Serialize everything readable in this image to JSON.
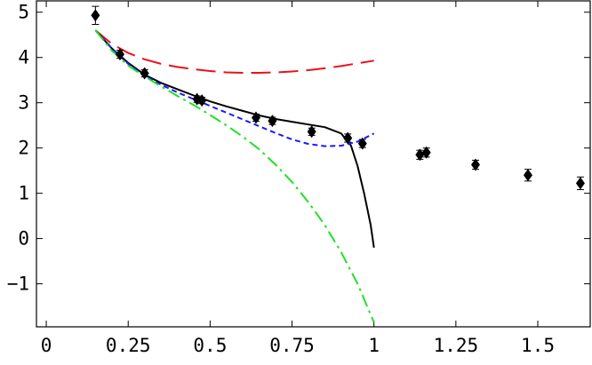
{
  "chart_data": {
    "type": "line",
    "title": "",
    "xlabel": "",
    "ylabel": "",
    "xlim": [
      -0.03,
      1.66
    ],
    "ylim": [
      -1.95,
      5.25
    ],
    "x_ticks": [
      0,
      0.25,
      0.5,
      0.75,
      1,
      1.25,
      1.5
    ],
    "x_tick_labels": [
      "0",
      "0.25",
      "0.5",
      "0.75",
      "1",
      "1.25",
      "1.5"
    ],
    "y_ticks": [
      -1,
      0,
      1,
      2,
      3,
      4,
      5
    ],
    "y_tick_labels": [
      "−1",
      "0",
      "1",
      "2",
      "3",
      "4",
      "5"
    ],
    "grid": false,
    "legend": "none",
    "series": [
      {
        "style": "long-dash",
        "color": "#e8121a",
        "x": [
          0.15,
          0.2,
          0.25,
          0.3,
          0.35,
          0.4,
          0.45,
          0.5,
          0.55,
          0.6,
          0.65,
          0.7,
          0.75,
          0.8,
          0.85,
          0.9,
          0.95,
          1.0
        ],
        "y": [
          4.6,
          4.3,
          4.1,
          3.96,
          3.86,
          3.79,
          3.74,
          3.7,
          3.67,
          3.66,
          3.66,
          3.67,
          3.69,
          3.72,
          3.76,
          3.81,
          3.87,
          3.93
        ]
      },
      {
        "style": "solid",
        "color": "#000000",
        "x": [
          0.15,
          0.2,
          0.25,
          0.3,
          0.35,
          0.4,
          0.45,
          0.5,
          0.55,
          0.6,
          0.65,
          0.7,
          0.75,
          0.8,
          0.85,
          0.9,
          0.93,
          0.95,
          0.97,
          0.99,
          1.0
        ],
        "y": [
          4.6,
          4.2,
          3.88,
          3.62,
          3.44,
          3.3,
          3.16,
          3.03,
          2.92,
          2.82,
          2.72,
          2.64,
          2.58,
          2.52,
          2.46,
          2.32,
          2.05,
          1.6,
          1.0,
          0.3,
          -0.2
        ]
      },
      {
        "style": "short-dash",
        "color": "#1a1aff",
        "x": [
          0.15,
          0.2,
          0.25,
          0.3,
          0.35,
          0.4,
          0.45,
          0.5,
          0.55,
          0.6,
          0.65,
          0.7,
          0.75,
          0.8,
          0.85,
          0.9,
          0.95,
          1.0
        ],
        "y": [
          4.6,
          4.2,
          3.86,
          3.6,
          3.4,
          3.23,
          3.08,
          2.93,
          2.78,
          2.63,
          2.48,
          2.33,
          2.19,
          2.09,
          2.04,
          2.05,
          2.14,
          2.32
        ]
      },
      {
        "style": "dash-dot",
        "color": "#22e022",
        "x": [
          0.15,
          0.2,
          0.25,
          0.3,
          0.35,
          0.4,
          0.45,
          0.5,
          0.55,
          0.6,
          0.65,
          0.7,
          0.75,
          0.8,
          0.85,
          0.9,
          0.95,
          1.0
        ],
        "y": [
          4.6,
          4.15,
          3.82,
          3.58,
          3.36,
          3.15,
          2.95,
          2.73,
          2.5,
          2.25,
          1.97,
          1.63,
          1.25,
          0.8,
          0.3,
          -0.3,
          -1.0,
          -1.85
        ]
      }
    ],
    "points": {
      "marker": "diamond",
      "color": "#000000",
      "x": [
        0.15,
        0.225,
        0.3,
        0.46,
        0.475,
        0.64,
        0.69,
        0.81,
        0.92,
        0.965,
        1.14,
        1.16,
        1.31,
        1.47,
        1.63
      ],
      "y": [
        4.93,
        4.07,
        3.65,
        3.08,
        3.05,
        2.67,
        2.6,
        2.36,
        2.22,
        2.1,
        1.85,
        1.9,
        1.63,
        1.4,
        1.22
      ],
      "err": [
        0.2,
        0.09,
        0.08,
        0.07,
        0.07,
        0.08,
        0.08,
        0.08,
        0.09,
        0.09,
        0.1,
        0.1,
        0.1,
        0.13,
        0.14
      ]
    }
  }
}
